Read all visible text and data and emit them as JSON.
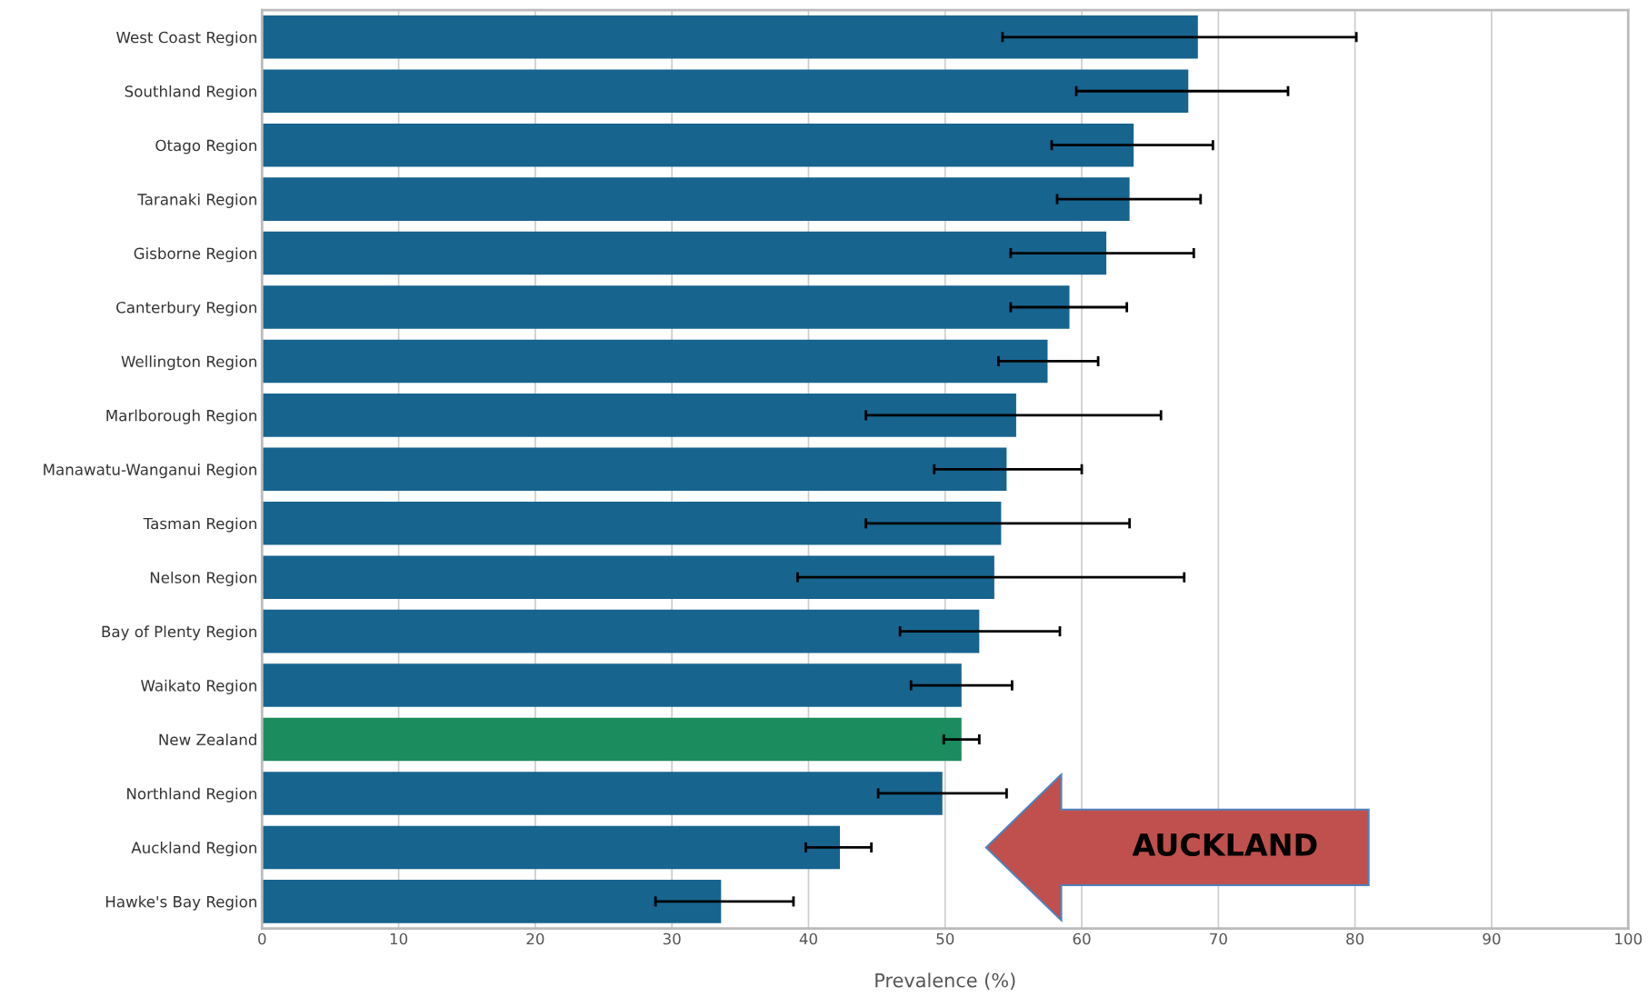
{
  "chart_data": {
    "type": "bar",
    "orientation": "horizontal",
    "xlabel": "Prevalence (%)",
    "categories": [
      "West Coast Region",
      "Southland Region",
      "Otago Region",
      "Taranaki Region",
      "Gisborne Region",
      "Canterbury Region",
      "Wellington Region",
      "Marlborough Region",
      "Manawatu-Wanganui Region",
      "Tasman Region",
      "Nelson Region",
      "Bay of Plenty Region",
      "Waikato Region",
      "New Zealand",
      "Northland Region",
      "Auckland Region",
      "Hawke's Bay Region"
    ],
    "values": [
      68.5,
      67.8,
      63.8,
      63.5,
      61.8,
      59.1,
      57.5,
      55.2,
      54.5,
      54.1,
      53.6,
      52.5,
      51.2,
      51.2,
      49.8,
      42.3,
      33.6
    ],
    "errors": [
      [
        54.2,
        80.1
      ],
      [
        59.6,
        75.1
      ],
      [
        57.8,
        69.6
      ],
      [
        58.2,
        68.7
      ],
      [
        54.8,
        68.2
      ],
      [
        54.8,
        63.3
      ],
      [
        53.9,
        61.2
      ],
      [
        44.2,
        65.8
      ],
      [
        49.2,
        60.0
      ],
      [
        44.2,
        63.5
      ],
      [
        39.2,
        67.5
      ],
      [
        46.7,
        58.4
      ],
      [
        47.5,
        54.9
      ],
      [
        49.9,
        52.5
      ],
      [
        45.1,
        54.5
      ],
      [
        39.8,
        44.6
      ],
      [
        28.8,
        38.9
      ]
    ],
    "colors": [
      "#17648f",
      "#17648f",
      "#17648f",
      "#17648f",
      "#17648f",
      "#17648f",
      "#17648f",
      "#17648f",
      "#17648f",
      "#17648f",
      "#17648f",
      "#17648f",
      "#17648f",
      "#1a8c5e",
      "#17648f",
      "#17648f",
      "#17648f"
    ],
    "xlim": [
      0,
      100
    ],
    "xticks": [
      0,
      10,
      20,
      30,
      40,
      50,
      60,
      70,
      80,
      90,
      100
    ],
    "grid": "x",
    "annotations": [
      "AUCKLAND"
    ]
  }
}
